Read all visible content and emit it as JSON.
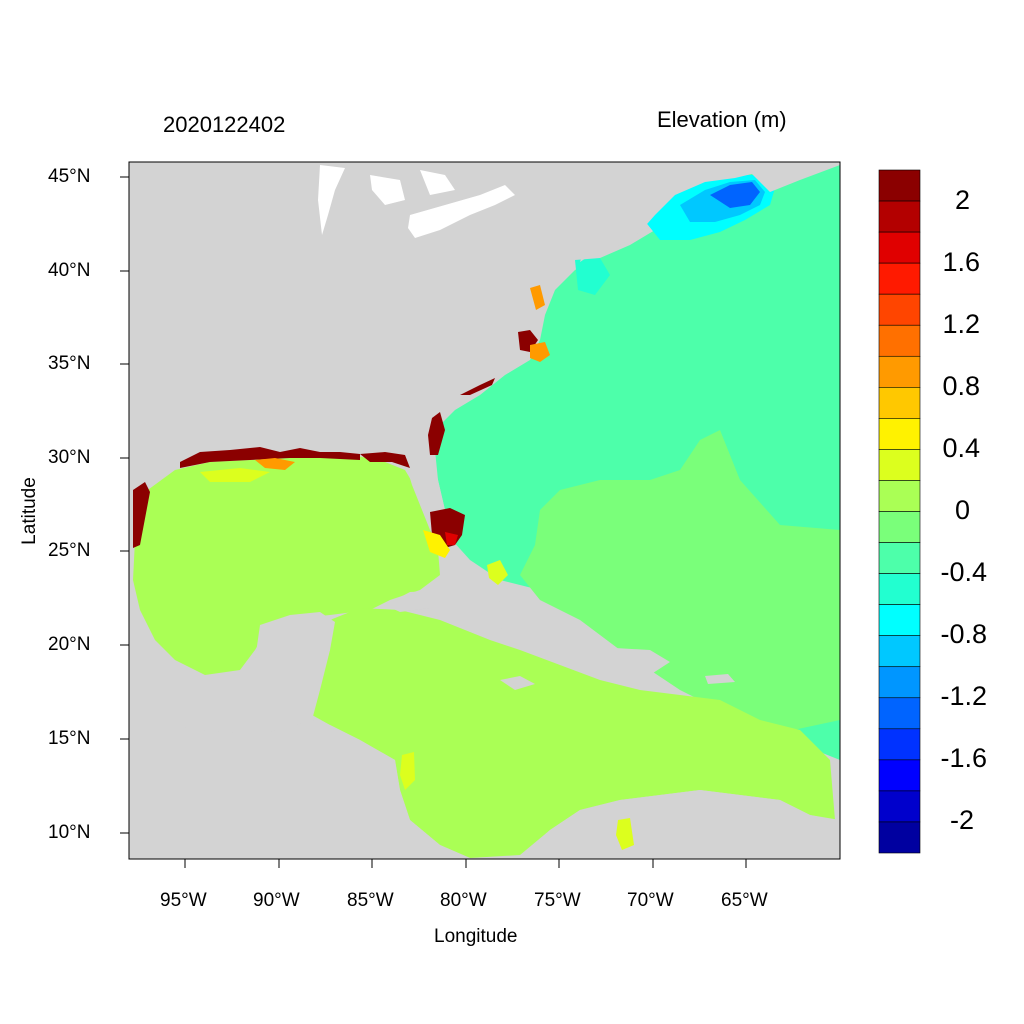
{
  "header": {
    "timestamp": "2020122402",
    "variable": "Elevation (m)"
  },
  "axes": {
    "xlabel": "Longitude",
    "ylabel": "Latitude",
    "x_ticks": [
      "95°W",
      "90°W",
      "85°W",
      "80°W",
      "75°W",
      "70°W",
      "65°W"
    ],
    "y_ticks": [
      "45°N",
      "40°N",
      "35°N",
      "30°N",
      "25°N",
      "20°N",
      "15°N",
      "10°N"
    ]
  },
  "colorbar": {
    "labels": [
      "2",
      "1.6",
      "1.2",
      "0.8",
      "0.4",
      "0",
      "-0.4",
      "-0.8",
      "-1.2",
      "-1.6",
      "-2"
    ],
    "colors": [
      "#8b0000",
      "#b30000",
      "#e00000",
      "#ff1a00",
      "#ff4500",
      "#ff7000",
      "#ff9a00",
      "#ffc800",
      "#fff200",
      "#dcff1e",
      "#aaff55",
      "#7aff7a",
      "#4dffaa",
      "#22ffd0",
      "#00ffff",
      "#00c8ff",
      "#0096ff",
      "#0064ff",
      "#0032ff",
      "#0000ff",
      "#0000cc",
      "#0000a0"
    ]
  },
  "colors": {
    "land": "#d3d3d3",
    "gulf": "#aaff55",
    "atlantic": "#4dffaa",
    "caribbean_east": "#7aff7a",
    "surge_high": "#8b0000",
    "surge_low": "#0050ff"
  }
}
